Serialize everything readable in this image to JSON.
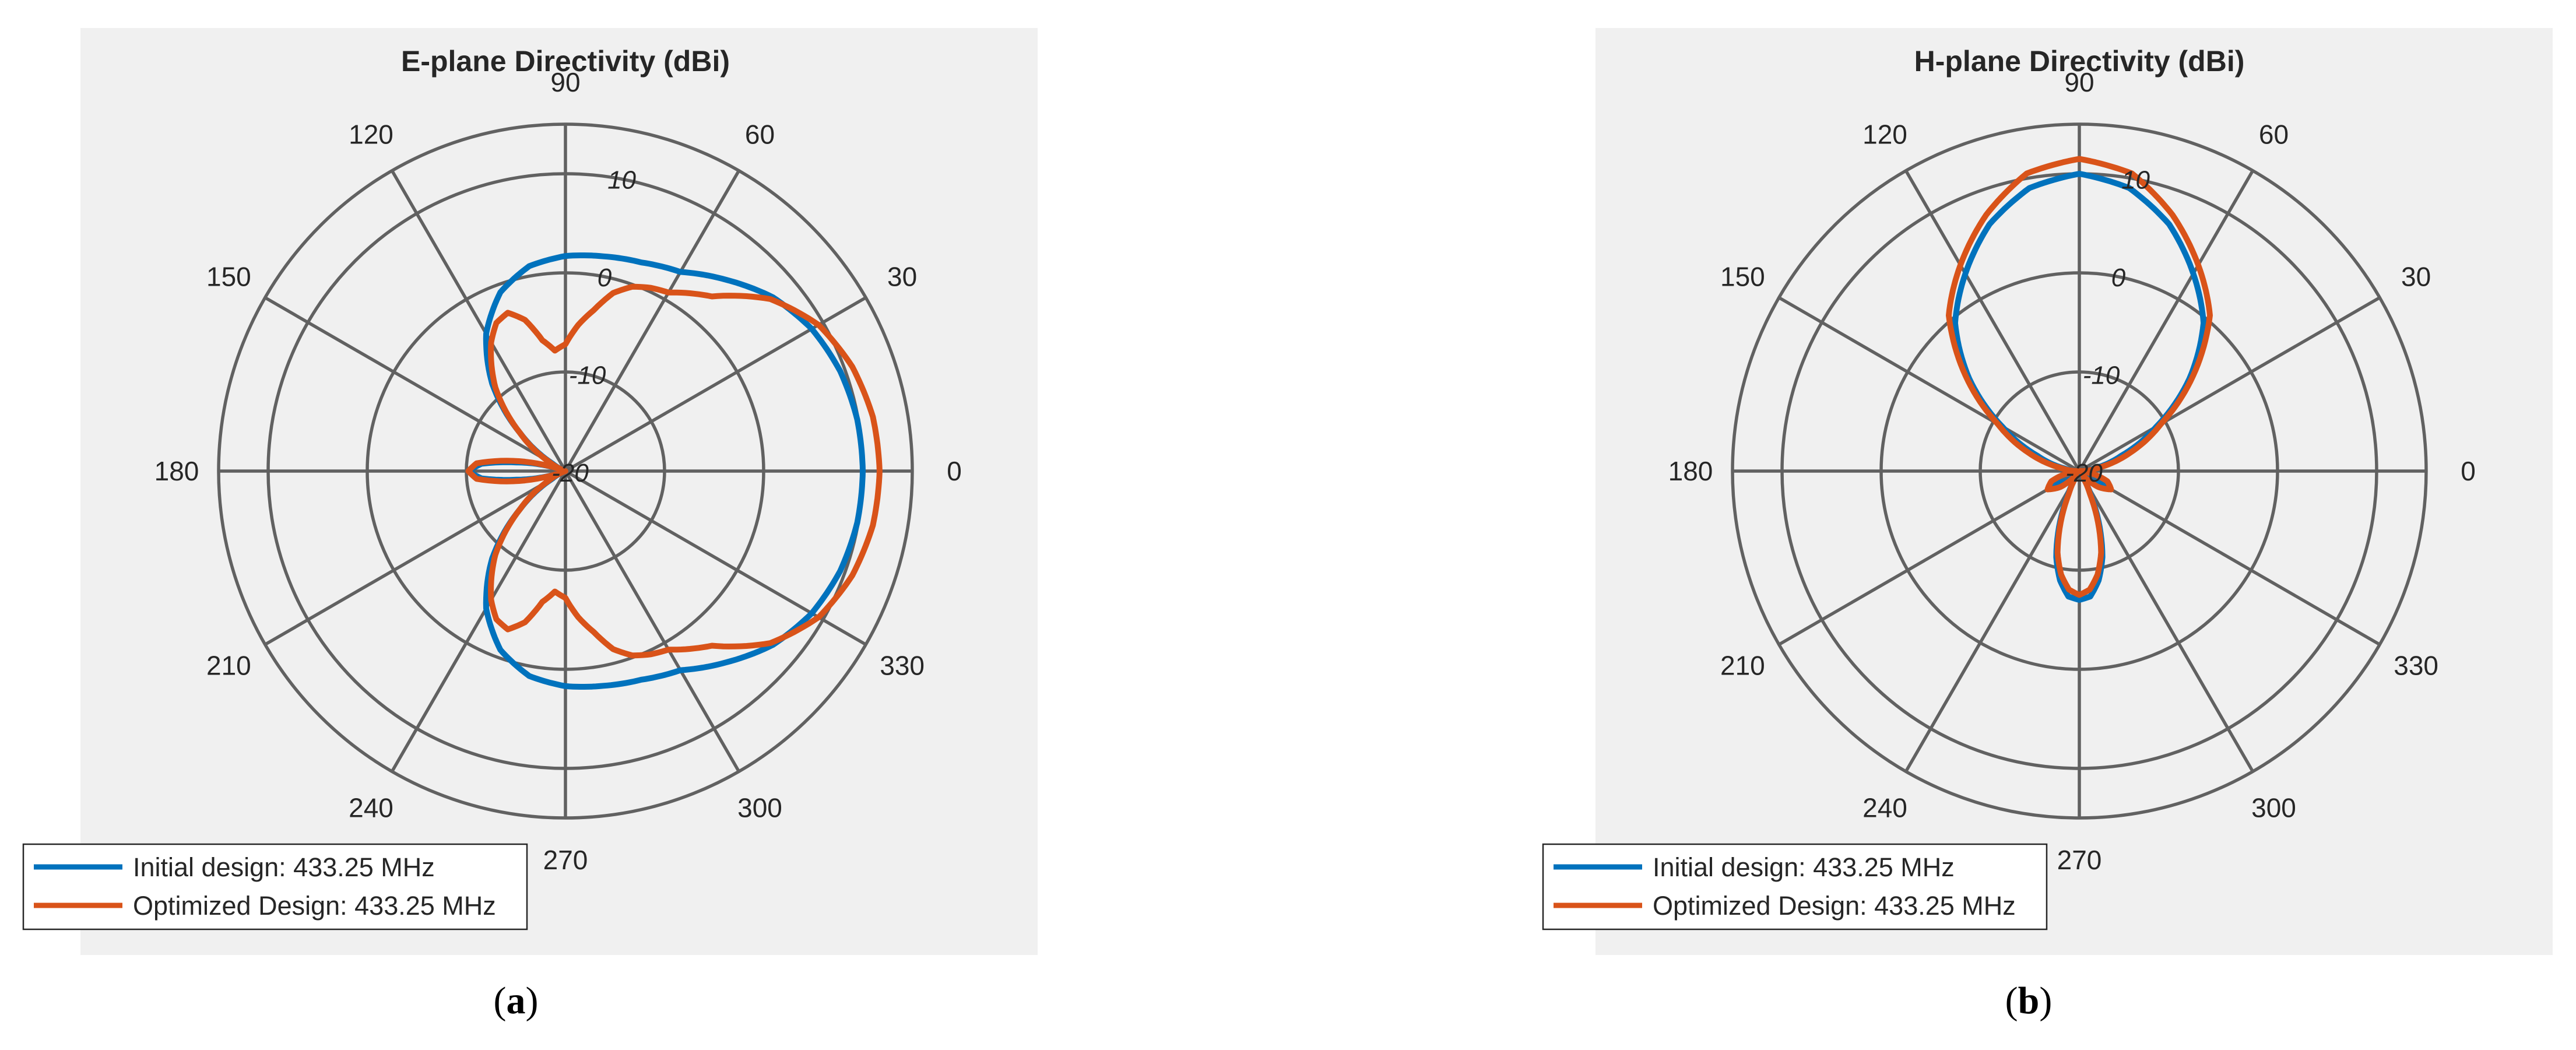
{
  "chart_data": [
    {
      "type": "polar-line",
      "panel_label": "a",
      "title": "E-plane Directivity (dBi)",
      "angle_ticks": [
        "0",
        "30",
        "60",
        "90",
        "120",
        "150",
        "180",
        "210",
        "240",
        "270",
        "300",
        "330"
      ],
      "radial_ticks": [
        -20,
        -10,
        0,
        10
      ],
      "rlim": [
        -20,
        15
      ],
      "grid": true,
      "legend_position": "bottom-left",
      "series": [
        {
          "name": "Initial design: 433.25 MHz",
          "color": "#0072bd",
          "angle_deg": [
            0,
            10,
            20,
            30,
            40,
            50,
            60,
            70,
            80,
            90,
            100,
            110,
            120,
            130,
            140,
            150,
            160,
            170,
            175,
            180,
            185,
            190,
            200,
            210,
            220,
            230,
            240,
            250,
            260,
            270,
            280,
            290,
            300,
            310,
            320,
            330,
            340,
            350
          ],
          "values_dbi": [
            10.0,
            9.9,
            9.5,
            8.7,
            7.3,
            5.2,
            3.2,
            2.4,
            2.0,
            1.7,
            1.0,
            -0.8,
            -4.0,
            -8.5,
            -14.0,
            -18.5,
            -20.0,
            -15.0,
            -11.5,
            -10.2,
            -11.5,
            -15.0,
            -20.0,
            -18.5,
            -14.0,
            -8.5,
            -4.0,
            -0.8,
            1.0,
            1.7,
            2.0,
            2.4,
            3.2,
            5.2,
            7.3,
            8.7,
            9.5,
            9.9
          ]
        },
        {
          "name": "Optimized Design: 433.25 MHz",
          "color": "#d95319",
          "angle_deg": [
            0,
            10,
            20,
            30,
            40,
            50,
            60,
            65,
            70,
            75,
            80,
            85,
            90,
            95,
            100,
            105,
            110,
            115,
            120,
            130,
            140,
            150,
            160,
            170,
            175,
            180,
            185,
            190,
            200,
            210,
            220,
            230,
            240,
            245,
            250,
            255,
            260,
            265,
            270,
            275,
            280,
            285,
            290,
            295,
            300,
            310,
            320,
            330,
            340,
            350
          ],
          "values_dbi": [
            11.7,
            11.5,
            10.8,
            9.5,
            7.0,
            3.0,
            0.8,
            0.4,
            -0.2,
            -1.4,
            -3.5,
            -5.2,
            -7.2,
            -7.8,
            -6.6,
            -4.2,
            -3.0,
            -3.5,
            -5.0,
            -9.0,
            -14.0,
            -18.0,
            -20.0,
            -14.0,
            -11.0,
            -10.2,
            -11.0,
            -14.0,
            -20.0,
            -18.0,
            -14.0,
            -9.0,
            -5.0,
            -3.5,
            -3.0,
            -4.2,
            -6.6,
            -7.8,
            -7.2,
            -5.2,
            -3.5,
            -1.4,
            -0.2,
            0.4,
            0.8,
            3.0,
            7.0,
            9.5,
            10.8,
            11.5
          ]
        }
      ]
    },
    {
      "type": "polar-line",
      "panel_label": "b",
      "title": "H-plane Directivity (dBi)",
      "angle_ticks": [
        "0",
        "30",
        "60",
        "90",
        "120",
        "150",
        "180",
        "210",
        "240",
        "270",
        "300",
        "330"
      ],
      "radial_ticks": [
        -20,
        -10,
        0,
        10
      ],
      "rlim": [
        -20,
        15
      ],
      "grid": true,
      "legend_position": "bottom-left",
      "series": [
        {
          "name": "Initial design: 433.25 MHz",
          "color": "#0072bd",
          "angle_deg": [
            0,
            10,
            20,
            30,
            40,
            50,
            60,
            70,
            80,
            90,
            100,
            110,
            120,
            130,
            140,
            150,
            160,
            170,
            180,
            190,
            200,
            210,
            220,
            230,
            240,
            245,
            250,
            255,
            260,
            265,
            270,
            275,
            280,
            285,
            290,
            295,
            300,
            310,
            320,
            330,
            340,
            350
          ],
          "values_dbi": [
            -20.0,
            -18.5,
            -15.5,
            -11.0,
            -5.5,
            -0.5,
            3.0,
            6.5,
            9.0,
            10.0,
            9.0,
            6.5,
            3.0,
            -0.5,
            -5.5,
            -11.0,
            -15.5,
            -18.5,
            -20.0,
            -19.0,
            -17.8,
            -17.2,
            -18.5,
            -20.0,
            -19.0,
            -17.0,
            -14.0,
            -11.0,
            -8.8,
            -7.3,
            -7.0,
            -7.3,
            -8.8,
            -11.0,
            -14.0,
            -17.0,
            -19.0,
            -20.0,
            -18.5,
            -17.2,
            -17.8,
            -19.0
          ]
        },
        {
          "name": "Optimized Design: 433.25 MHz",
          "color": "#d95319",
          "angle_deg": [
            0,
            10,
            20,
            30,
            40,
            50,
            60,
            70,
            80,
            90,
            100,
            110,
            120,
            130,
            140,
            150,
            160,
            170,
            180,
            190,
            200,
            210,
            220,
            230,
            240,
            245,
            250,
            255,
            260,
            265,
            270,
            275,
            280,
            285,
            290,
            295,
            300,
            310,
            320,
            330,
            340,
            350
          ],
          "values_dbi": [
            -20.0,
            -18.0,
            -14.5,
            -10.5,
            -5.0,
            0.5,
            4.0,
            7.5,
            10.5,
            11.5,
            10.5,
            7.5,
            4.0,
            0.5,
            -5.0,
            -10.5,
            -14.5,
            -18.0,
            -20.0,
            -19.0,
            -17.0,
            -16.3,
            -17.5,
            -19.5,
            -19.0,
            -17.5,
            -14.5,
            -11.5,
            -9.4,
            -8.0,
            -7.5,
            -8.0,
            -9.4,
            -11.5,
            -14.5,
            -17.5,
            -19.0,
            -19.5,
            -17.5,
            -16.3,
            -17.0,
            -19.0
          ]
        }
      ]
    }
  ]
}
